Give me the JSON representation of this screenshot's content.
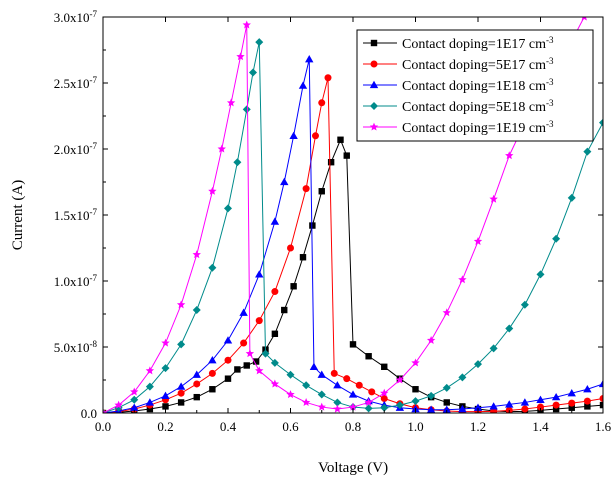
{
  "chart_data": {
    "type": "line",
    "xlabel": "Voltage (V)",
    "ylabel": "Current (A)",
    "xlim": [
      0.0,
      1.6
    ],
    "ylim": [
      0.0,
      3e-07
    ],
    "x_ticks": [
      0.0,
      0.2,
      0.4,
      0.6,
      0.8,
      1.0,
      1.2,
      1.4,
      1.6
    ],
    "x_tick_labels": [
      "0.0",
      "0.2",
      "0.4",
      "0.6",
      "0.8",
      "1.0",
      "1.2",
      "1.4",
      "1.6"
    ],
    "y_ticks": [
      0.0,
      5e-08,
      1e-07,
      1.5e-07,
      2e-07,
      2.5e-07,
      3e-07
    ],
    "y_tick_labels": [
      {
        "base": "0.0",
        "exp": ""
      },
      {
        "base": "5.0x10",
        "exp": "-8"
      },
      {
        "base": "1.0x10",
        "exp": "-7"
      },
      {
        "base": "1.5x10",
        "exp": "-7"
      },
      {
        "base": "2.0x10",
        "exp": "-7"
      },
      {
        "base": "2.5x10",
        "exp": "-7"
      },
      {
        "base": "3.0x10",
        "exp": "-7"
      }
    ],
    "grid": false,
    "legend_position": "top-right",
    "series": [
      {
        "name": "Contact doping=1E17 cm",
        "name_sup": "-3",
        "color": "#000000",
        "marker": "square",
        "points": [
          [
            0.0,
            0
          ],
          [
            0.05,
            5e-10
          ],
          [
            0.1,
            1.5e-09
          ],
          [
            0.15,
            3e-09
          ],
          [
            0.2,
            5e-09
          ],
          [
            0.25,
            8e-09
          ],
          [
            0.3,
            1.2e-08
          ],
          [
            0.35,
            1.8e-08
          ],
          [
            0.4,
            2.6e-08
          ],
          [
            0.43,
            3.3e-08
          ],
          [
            0.46,
            3.6e-08
          ],
          [
            0.49,
            3.9e-08
          ],
          [
            0.52,
            4.8e-08
          ],
          [
            0.55,
            6e-08
          ],
          [
            0.58,
            7.8e-08
          ],
          [
            0.61,
            9.6e-08
          ],
          [
            0.64,
            1.18e-07
          ],
          [
            0.67,
            1.42e-07
          ],
          [
            0.7,
            1.68e-07
          ],
          [
            0.73,
            1.9e-07
          ],
          [
            0.76,
            2.07e-07
          ],
          [
            0.78,
            1.95e-07
          ],
          [
            0.8,
            5.2e-08
          ],
          [
            0.85,
            4.3e-08
          ],
          [
            0.9,
            3.5e-08
          ],
          [
            0.95,
            2.6e-08
          ],
          [
            1.0,
            1.8e-08
          ],
          [
            1.05,
            1.2e-08
          ],
          [
            1.1,
            8e-09
          ],
          [
            1.15,
            5e-09
          ],
          [
            1.2,
            3e-09
          ],
          [
            1.25,
            1.5e-09
          ],
          [
            1.3,
            1e-09
          ],
          [
            1.35,
            1.2e-09
          ],
          [
            1.4,
            2e-09
          ],
          [
            1.45,
            3e-09
          ],
          [
            1.5,
            4e-09
          ],
          [
            1.55,
            5e-09
          ],
          [
            1.6,
            6e-09
          ]
        ]
      },
      {
        "name": "Contact doping=5E17 cm",
        "name_sup": "-3",
        "color": "#ff0000",
        "marker": "circle",
        "points": [
          [
            0.0,
            0
          ],
          [
            0.05,
            1e-09
          ],
          [
            0.1,
            3e-09
          ],
          [
            0.15,
            6e-09
          ],
          [
            0.2,
            1e-08
          ],
          [
            0.25,
            1.5e-08
          ],
          [
            0.3,
            2.2e-08
          ],
          [
            0.35,
            3e-08
          ],
          [
            0.4,
            4e-08
          ],
          [
            0.45,
            5.3e-08
          ],
          [
            0.5,
            7e-08
          ],
          [
            0.55,
            9.2e-08
          ],
          [
            0.6,
            1.25e-07
          ],
          [
            0.65,
            1.7e-07
          ],
          [
            0.68,
            2.1e-07
          ],
          [
            0.7,
            2.35e-07
          ],
          [
            0.72,
            2.54e-07
          ],
          [
            0.74,
            3e-08
          ],
          [
            0.78,
            2.6e-08
          ],
          [
            0.82,
            2.1e-08
          ],
          [
            0.86,
            1.6e-08
          ],
          [
            0.9,
            1.1e-08
          ],
          [
            0.95,
            7e-09
          ],
          [
            1.0,
            4e-09
          ],
          [
            1.05,
            2.5e-09
          ],
          [
            1.1,
            1.5e-09
          ],
          [
            1.15,
            1e-09
          ],
          [
            1.2,
            1e-09
          ],
          [
            1.25,
            1.2e-09
          ],
          [
            1.3,
            2e-09
          ],
          [
            1.35,
            3e-09
          ],
          [
            1.4,
            4.5e-09
          ],
          [
            1.45,
            6e-09
          ],
          [
            1.5,
            7.5e-09
          ],
          [
            1.55,
            9e-09
          ],
          [
            1.6,
            1.1e-08
          ]
        ]
      },
      {
        "name": "Contact doping=1E18 cm",
        "name_sup": "-3",
        "color": "#0000ff",
        "marker": "triangle",
        "points": [
          [
            0.0,
            0
          ],
          [
            0.05,
            1.5e-09
          ],
          [
            0.1,
            4e-09
          ],
          [
            0.15,
            8e-09
          ],
          [
            0.2,
            1.3e-08
          ],
          [
            0.25,
            2e-08
          ],
          [
            0.3,
            2.9e-08
          ],
          [
            0.35,
            4e-08
          ],
          [
            0.4,
            5.5e-08
          ],
          [
            0.45,
            7.6e-08
          ],
          [
            0.5,
            1.05e-07
          ],
          [
            0.55,
            1.45e-07
          ],
          [
            0.58,
            1.75e-07
          ],
          [
            0.61,
            2.1e-07
          ],
          [
            0.64,
            2.48e-07
          ],
          [
            0.66,
            2.68e-07
          ],
          [
            0.675,
            3.5e-08
          ],
          [
            0.7,
            2.9e-08
          ],
          [
            0.75,
            2.1e-08
          ],
          [
            0.8,
            1.4e-08
          ],
          [
            0.85,
            9e-09
          ],
          [
            0.9,
            6e-09
          ],
          [
            0.95,
            4e-09
          ],
          [
            1.0,
            3e-09
          ],
          [
            1.05,
            2.5e-09
          ],
          [
            1.1,
            2.5e-09
          ],
          [
            1.15,
            3e-09
          ],
          [
            1.2,
            4e-09
          ],
          [
            1.25,
            5e-09
          ],
          [
            1.3,
            6.5e-09
          ],
          [
            1.35,
            8e-09
          ],
          [
            1.4,
            1e-08
          ],
          [
            1.45,
            1.2e-08
          ],
          [
            1.5,
            1.5e-08
          ],
          [
            1.55,
            1.8e-08
          ],
          [
            1.6,
            2.2e-08
          ]
        ]
      },
      {
        "name": "Contact doping=5E18 cm",
        "name_sup": "-3",
        "color": "#008b8b",
        "marker": "diamond",
        "points": [
          [
            0.0,
            0
          ],
          [
            0.05,
            4e-09
          ],
          [
            0.1,
            1e-08
          ],
          [
            0.15,
            2e-08
          ],
          [
            0.2,
            3.4e-08
          ],
          [
            0.25,
            5.2e-08
          ],
          [
            0.3,
            7.8e-08
          ],
          [
            0.35,
            1.1e-07
          ],
          [
            0.4,
            1.55e-07
          ],
          [
            0.43,
            1.9e-07
          ],
          [
            0.46,
            2.3e-07
          ],
          [
            0.48,
            2.58e-07
          ],
          [
            0.5,
            2.81e-07
          ],
          [
            0.52,
            4.5e-08
          ],
          [
            0.55,
            3.8e-08
          ],
          [
            0.6,
            2.9e-08
          ],
          [
            0.65,
            2.1e-08
          ],
          [
            0.7,
            1.4e-08
          ],
          [
            0.75,
            8e-09
          ],
          [
            0.8,
            4.5e-09
          ],
          [
            0.85,
            3.5e-09
          ],
          [
            0.9,
            4e-09
          ],
          [
            0.95,
            6e-09
          ],
          [
            1.0,
            9e-09
          ],
          [
            1.05,
            1.3e-08
          ],
          [
            1.1,
            1.9e-08
          ],
          [
            1.15,
            2.7e-08
          ],
          [
            1.2,
            3.7e-08
          ],
          [
            1.25,
            4.9e-08
          ],
          [
            1.3,
            6.4e-08
          ],
          [
            1.35,
            8.2e-08
          ],
          [
            1.4,
            1.05e-07
          ],
          [
            1.45,
            1.32e-07
          ],
          [
            1.5,
            1.63e-07
          ],
          [
            1.55,
            1.98e-07
          ],
          [
            1.6,
            2.2e-07
          ]
        ]
      },
      {
        "name": "Contact doping=1E19 cm",
        "name_sup": "-3",
        "color": "#ff00ff",
        "marker": "star",
        "points": [
          [
            0.0,
            0
          ],
          [
            0.05,
            6e-09
          ],
          [
            0.1,
            1.6e-08
          ],
          [
            0.15,
            3.2e-08
          ],
          [
            0.2,
            5.3e-08
          ],
          [
            0.25,
            8.2e-08
          ],
          [
            0.3,
            1.2e-07
          ],
          [
            0.35,
            1.68e-07
          ],
          [
            0.38,
            2e-07
          ],
          [
            0.41,
            2.35e-07
          ],
          [
            0.44,
            2.7e-07
          ],
          [
            0.46,
            2.94e-07
          ],
          [
            0.47,
            4.5e-08
          ],
          [
            0.5,
            3.2e-08
          ],
          [
            0.55,
            2.2e-08
          ],
          [
            0.6,
            1.4e-08
          ],
          [
            0.65,
            8e-09
          ],
          [
            0.7,
            4.5e-09
          ],
          [
            0.75,
            3e-09
          ],
          [
            0.8,
            4.5e-09
          ],
          [
            0.85,
            8e-09
          ],
          [
            0.9,
            1.5e-08
          ],
          [
            0.95,
            2.5e-08
          ],
          [
            1.0,
            3.8e-08
          ],
          [
            1.05,
            5.5e-08
          ],
          [
            1.1,
            7.6e-08
          ],
          [
            1.15,
            1.01e-07
          ],
          [
            1.2,
            1.3e-07
          ],
          [
            1.25,
            1.62e-07
          ],
          [
            1.3,
            1.95e-07
          ],
          [
            1.35,
            2.2e-07
          ],
          [
            1.4,
            2.42e-07
          ],
          [
            1.45,
            2.62e-07
          ],
          [
            1.5,
            2.82e-07
          ],
          [
            1.54,
            3e-07
          ]
        ]
      }
    ]
  }
}
